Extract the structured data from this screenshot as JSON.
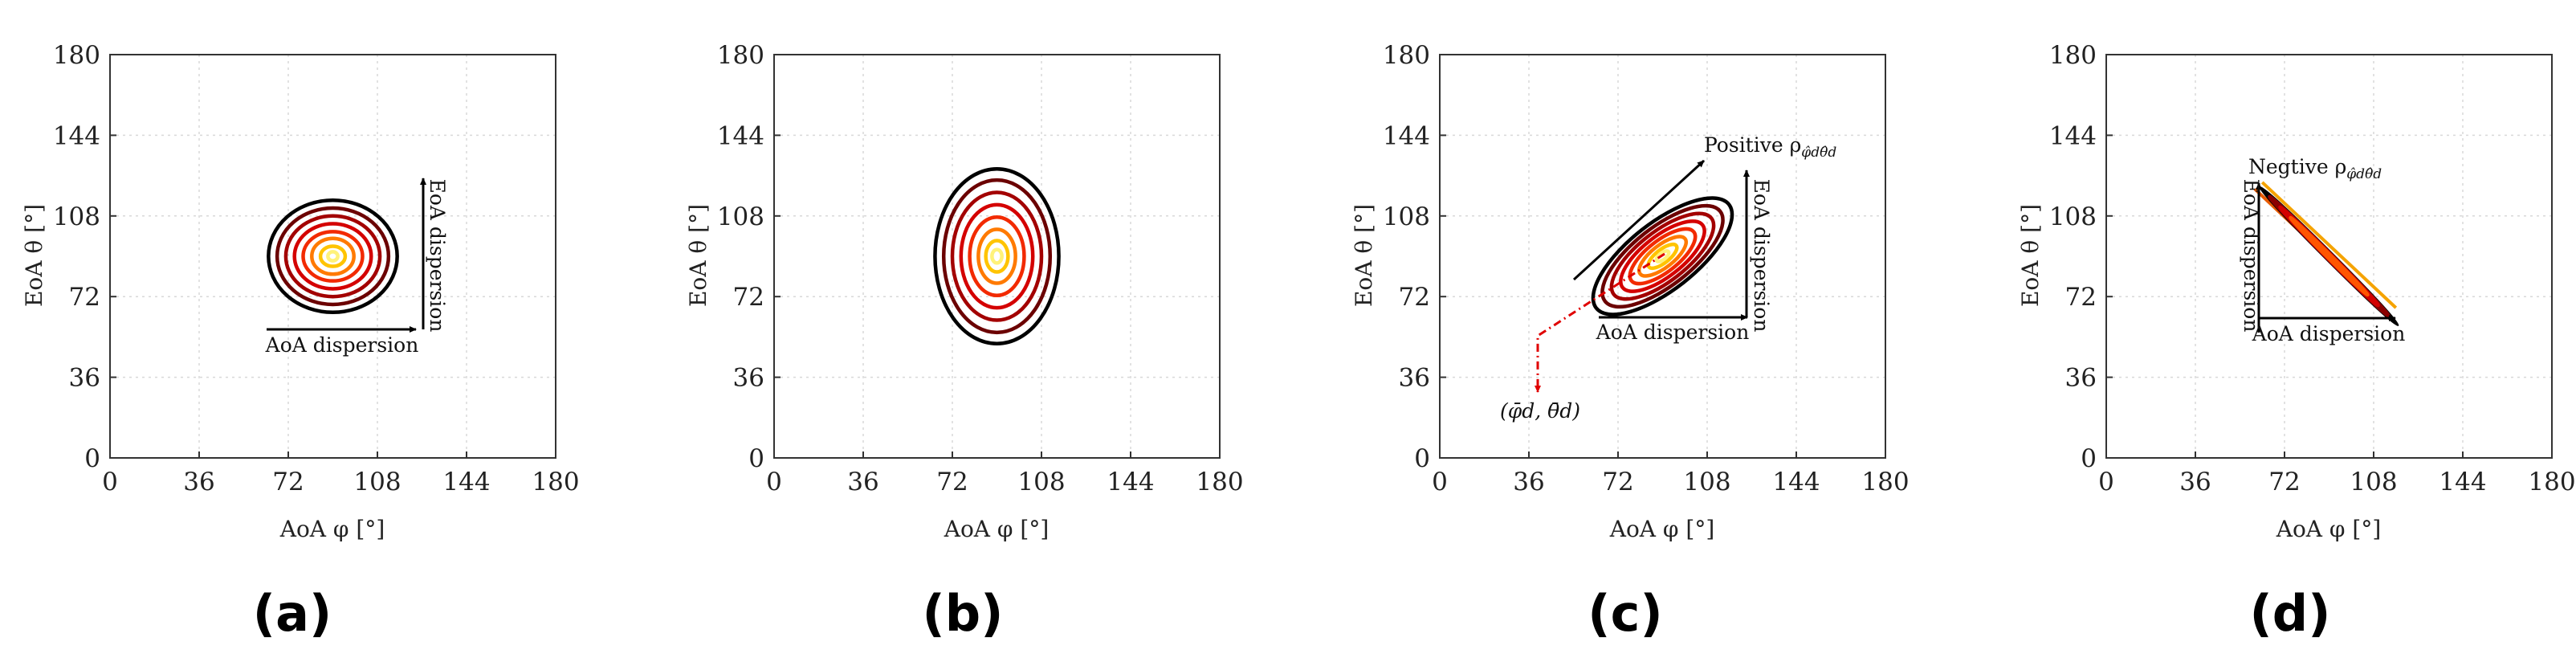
{
  "chart_data": [
    {
      "type": "contour",
      "panel_label": "(a)",
      "xlabel": "AoA φ [°]",
      "ylabel": "EoA θ [°]",
      "xlim": [
        0,
        180
      ],
      "ylim": [
        0,
        180
      ],
      "xticks": [
        "0",
        "36",
        "72",
        "108",
        "144",
        "180"
      ],
      "yticks": [
        "0",
        "36",
        "72",
        "108",
        "144",
        "180"
      ],
      "grid": true,
      "center": [
        90,
        90
      ],
      "contours": [
        {
          "rx": 26,
          "ry": 25,
          "angle": 0,
          "color": "#000000"
        },
        {
          "rx": 22.5,
          "ry": 21.5,
          "angle": 0,
          "color": "#6b0000"
        },
        {
          "rx": 19,
          "ry": 18,
          "angle": 0,
          "color": "#a30000"
        },
        {
          "rx": 15.5,
          "ry": 14.5,
          "angle": 0,
          "color": "#d40000"
        },
        {
          "rx": 12,
          "ry": 11,
          "angle": 0,
          "color": "#f22a00"
        },
        {
          "rx": 8.5,
          "ry": 8,
          "angle": 0,
          "color": "#ff7a00"
        },
        {
          "rx": 5,
          "ry": 4.5,
          "angle": 0,
          "color": "#ffc400"
        },
        {
          "rx": 2,
          "ry": 2,
          "angle": 0,
          "color": "#fff27a"
        }
      ],
      "annotations": {
        "horizontal_label": "AoA dispersion",
        "vertical_label": "EoA dispersion"
      }
    },
    {
      "type": "contour",
      "panel_label": "(b)",
      "xlabel": "AoA φ [°]",
      "ylabel": "EoA θ [°]",
      "xlim": [
        0,
        180
      ],
      "ylim": [
        0,
        180
      ],
      "xticks": [
        "0",
        "36",
        "72",
        "108",
        "144",
        "180"
      ],
      "yticks": [
        "0",
        "36",
        "72",
        "108",
        "144",
        "180"
      ],
      "grid": true,
      "center": [
        90,
        90
      ],
      "contours": [
        {
          "rx": 25,
          "ry": 39,
          "angle": 0,
          "color": "#000000"
        },
        {
          "rx": 21.5,
          "ry": 34,
          "angle": 0,
          "color": "#6b0000"
        },
        {
          "rx": 18,
          "ry": 28.5,
          "angle": 0,
          "color": "#a30000"
        },
        {
          "rx": 14.5,
          "ry": 23,
          "angle": 0,
          "color": "#d40000"
        },
        {
          "rx": 11,
          "ry": 17.5,
          "angle": 0,
          "color": "#f22a00"
        },
        {
          "rx": 7.5,
          "ry": 12,
          "angle": 0,
          "color": "#ff7a00"
        },
        {
          "rx": 4.5,
          "ry": 7,
          "angle": 0,
          "color": "#ffc400"
        },
        {
          "rx": 2,
          "ry": 3,
          "angle": 0,
          "color": "#fff27a"
        }
      ]
    },
    {
      "type": "contour",
      "panel_label": "(c)",
      "xlabel": "AoA φ [°]",
      "ylabel": "EoA θ [°]",
      "xlim": [
        0,
        180
      ],
      "ylim": [
        0,
        180
      ],
      "xticks": [
        "0",
        "36",
        "72",
        "108",
        "144",
        "180"
      ],
      "yticks": [
        "0",
        "36",
        "72",
        "108",
        "144",
        "180"
      ],
      "grid": true,
      "center": [
        90,
        90
      ],
      "contours": [
        {
          "rx": 34,
          "ry": 15,
          "angle": 38,
          "color": "#000000"
        },
        {
          "rx": 29.5,
          "ry": 13,
          "angle": 38,
          "color": "#6b0000"
        },
        {
          "rx": 25,
          "ry": 11,
          "angle": 38,
          "color": "#a30000"
        },
        {
          "rx": 20.5,
          "ry": 9,
          "angle": 38,
          "color": "#d40000"
        },
        {
          "rx": 16,
          "ry": 7,
          "angle": 38,
          "color": "#f22a00"
        },
        {
          "rx": 11.5,
          "ry": 5,
          "angle": 38,
          "color": "#ff7a00"
        },
        {
          "rx": 7,
          "ry": 3,
          "angle": 38,
          "color": "#ffc400"
        },
        {
          "rx": 3,
          "ry": 1.5,
          "angle": 38,
          "color": "#fff27a"
        }
      ],
      "annotations": {
        "correlation_label": "Positive ρ",
        "correlation_sub": "φ̂dθ̂d",
        "horizontal_label": "AoA dispersion",
        "vertical_label": "EoA dispersion",
        "mean_label": "(φ̄d, θ̄d)",
        "mean_point": [
          38,
          55
        ]
      }
    },
    {
      "type": "contour",
      "panel_label": "(d)",
      "xlabel": "AoA φ [°]",
      "ylabel": "EoA θ [°]",
      "xlim": [
        0,
        180
      ],
      "ylim": [
        0,
        180
      ],
      "xticks": [
        "0",
        "36",
        "72",
        "108",
        "144",
        "180"
      ],
      "yticks": [
        "0",
        "36",
        "72",
        "108",
        "144",
        "180"
      ],
      "grid": true,
      "center": [
        90,
        90
      ],
      "contours": [
        {
          "rx": 39,
          "ry": 1.4,
          "angle": -45,
          "color": "#000000"
        },
        {
          "rx": 34,
          "ry": 1.2,
          "angle": -45,
          "color": "#8b0000"
        },
        {
          "rx": 28,
          "ry": 1.0,
          "angle": -45,
          "color": "#d40000"
        },
        {
          "rx": 22,
          "ry": 0.8,
          "angle": -45,
          "color": "#ff5500"
        }
      ],
      "diagonal_lines": [
        {
          "from": [
            63,
            123
          ],
          "to": [
            117,
            67
          ],
          "color": "#f5a300"
        },
        {
          "from": [
            60,
            120
          ],
          "to": [
            114,
            64
          ],
          "color": "#e85a00"
        }
      ],
      "annotations": {
        "correlation_label": "Negtive ρ",
        "correlation_sub": "φ̂dθ̂d",
        "horizontal_label": "AoA dispersion",
        "vertical_label": "EoA dispersion"
      }
    }
  ]
}
